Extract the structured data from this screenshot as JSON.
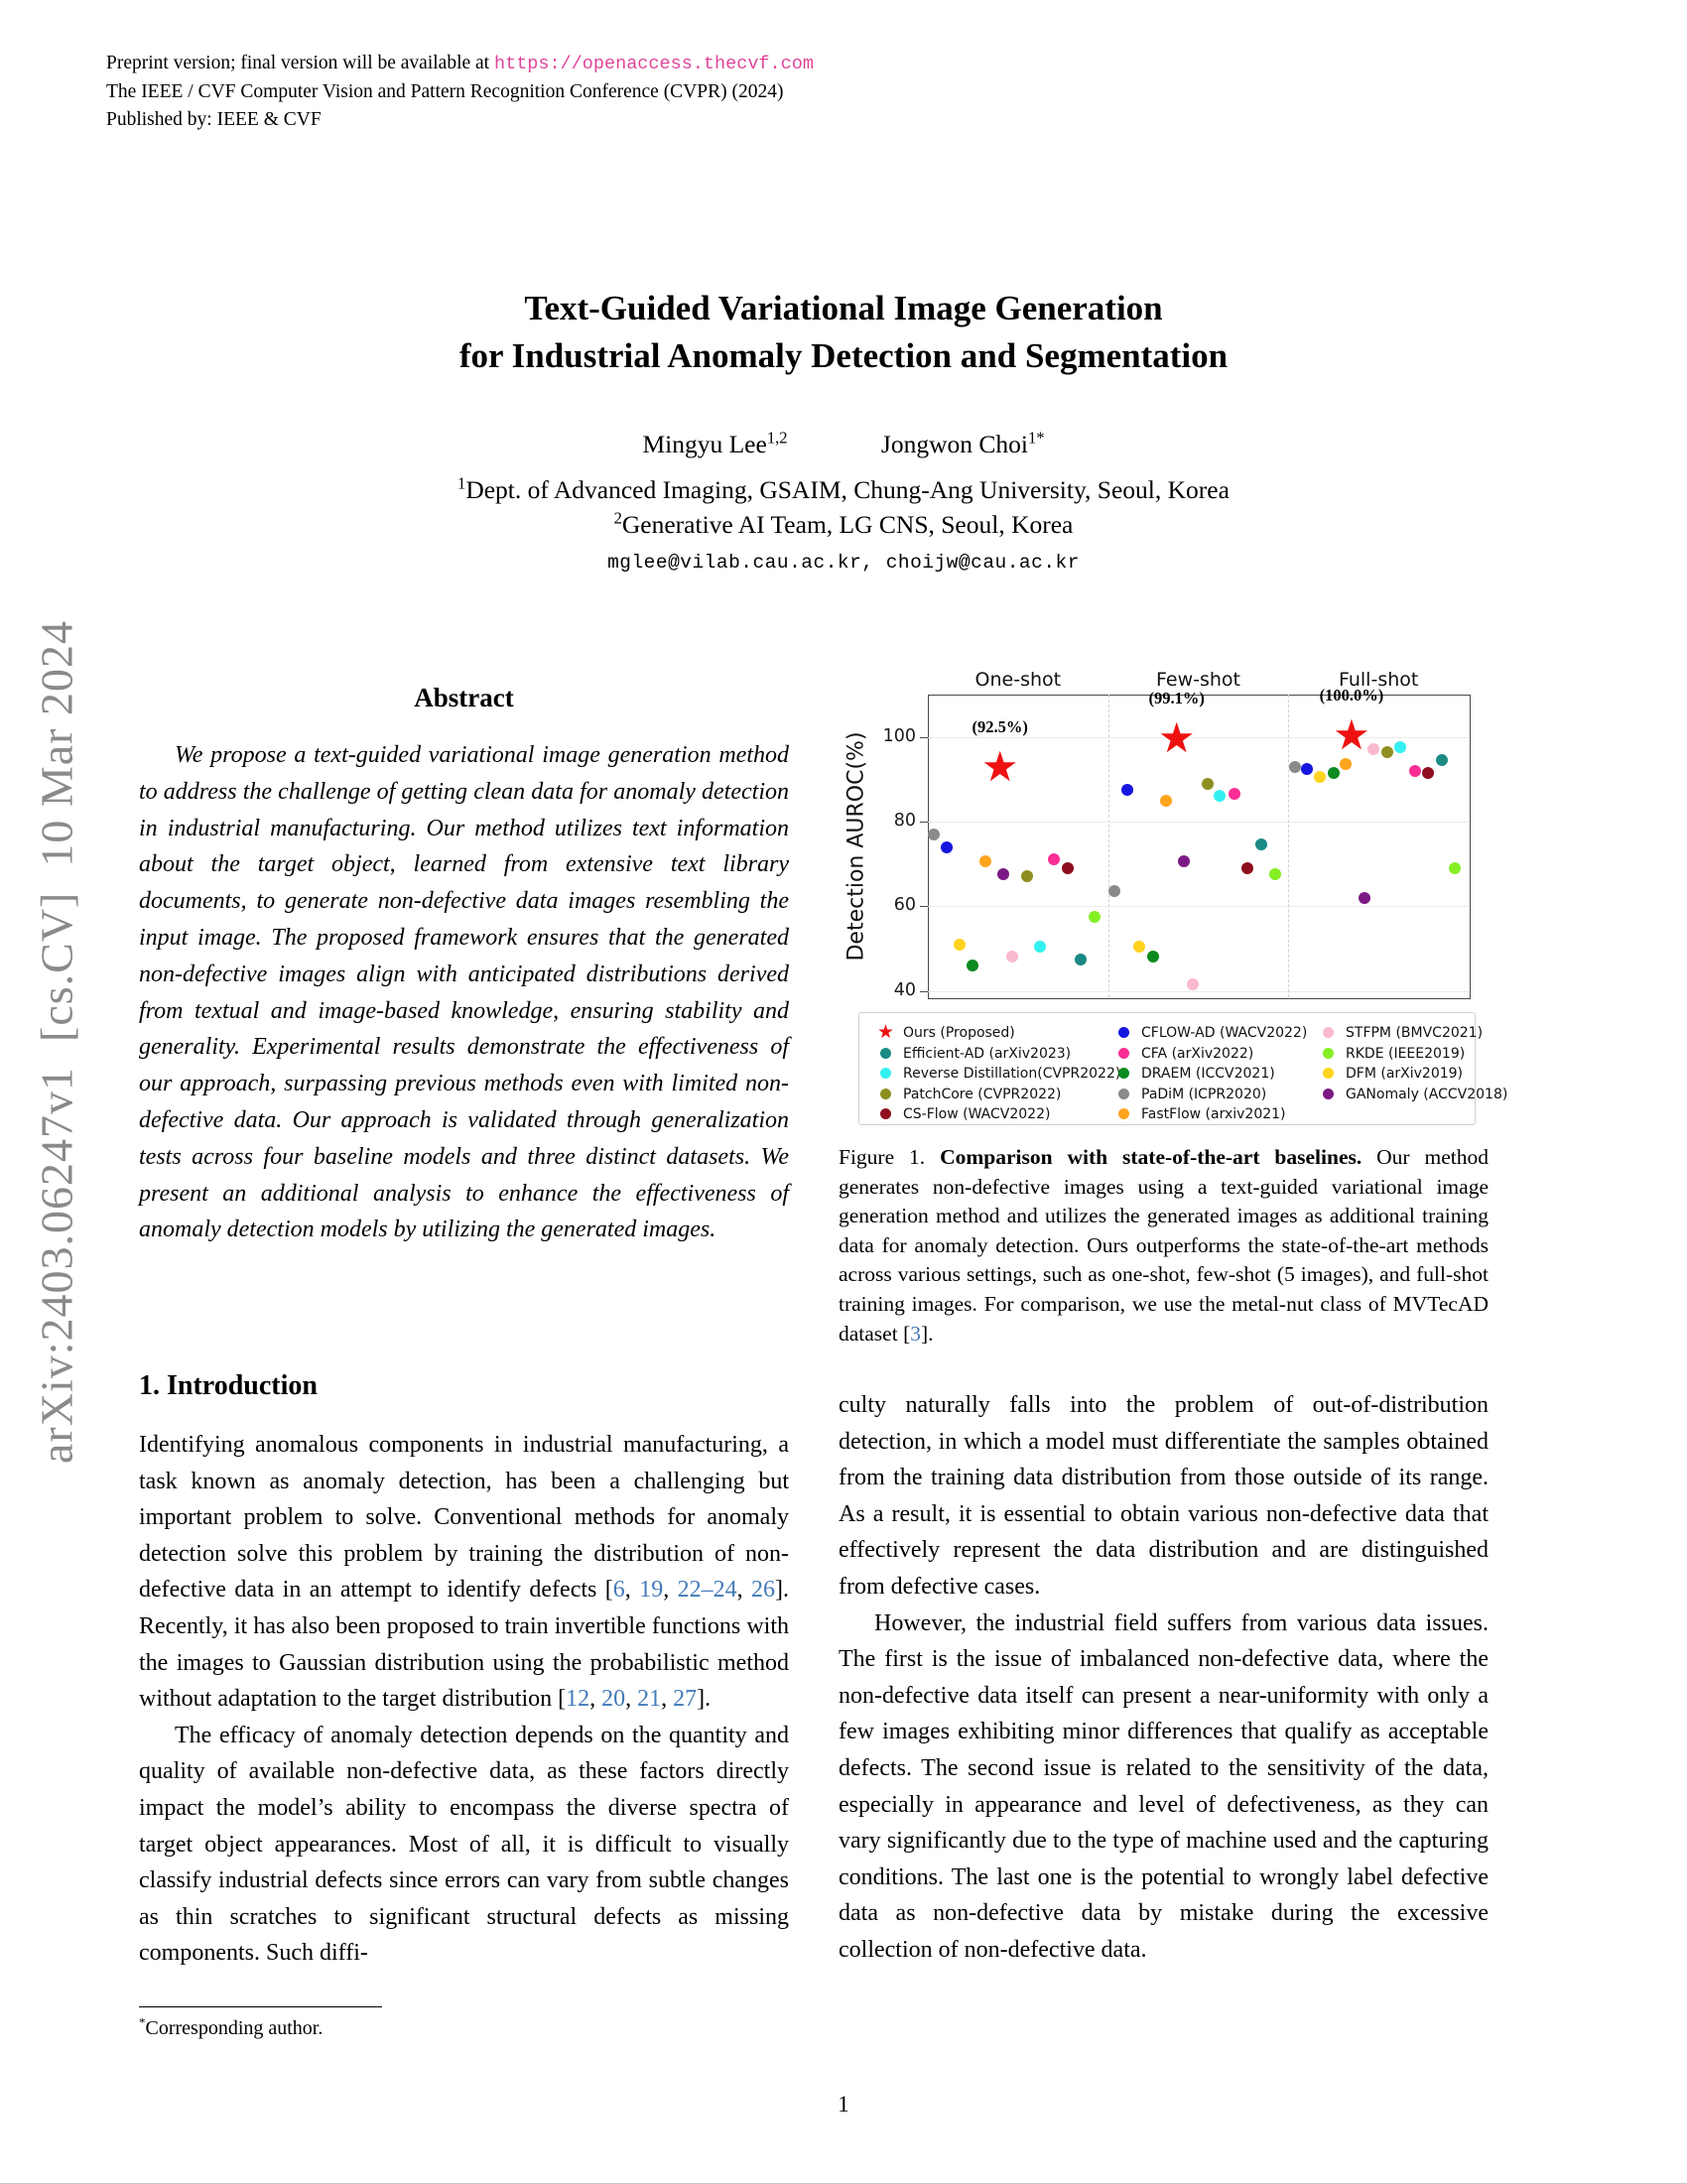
{
  "header": {
    "line1_prefix": "Preprint version; final version will be available at ",
    "line1_url": "https://openaccess.thecvf.com",
    "line2": "The IEEE / CVF Computer Vision and Pattern Recognition Conference (CVPR) (2024)",
    "line3": "Published by: IEEE & CVF"
  },
  "sidebar": {
    "arxiv_text": "arXiv:2403.06247v1  [cs.CV]  10 Mar 2024"
  },
  "title": {
    "line1": "Text-Guided Variational Image Generation",
    "line2": "for Industrial Anomaly Detection and Segmentation"
  },
  "authors": [
    {
      "name": "Mingyu Lee",
      "sup": "1,2"
    },
    {
      "name": "Jongwon Choi",
      "sup": "1*"
    }
  ],
  "affiliations": [
    {
      "sup": "1",
      "text": "Dept. of Advanced Imaging, GSAIM, Chung-Ang University, Seoul, Korea"
    },
    {
      "sup": "2",
      "text": "Generative AI Team, LG CNS, Seoul, Korea"
    }
  ],
  "emails": "mglee@vilab.cau.ac.kr, choijw@cau.ac.kr",
  "abstract": {
    "heading": "Abstract",
    "text": "We propose a text-guided variational image generation method to address the challenge of getting clean data for anomaly detection in industrial manufacturing. Our method utilizes text information about the target object, learned from extensive text library documents, to generate non-defective data images resembling the input image. The proposed framework ensures that the generated non-defective images align with anticipated distributions derived from textual and image-based knowledge, ensuring stability and generality. Experimental results demonstrate the effectiveness of our approach, surpassing previous methods even with limited non-defective data. Our approach is validated through generalization tests across four baseline models and three distinct datasets. We present an additional analysis to enhance the effectiveness of anomaly detection models by utilizing the generated images."
  },
  "intro": {
    "heading": "1. Introduction",
    "p1": "Identifying anomalous components in industrial manufacturing, a task known as anomaly detection, has been a challenging but important problem to solve. Conventional methods for anomaly detection solve this problem by training the distribution of non-defective data in an attempt to identify defects [6, 19, 22–24, 26]. Recently, it has also been proposed to train invertible functions with the images to Gaussian distribution using the probabilistic method without adaptation to the target distribution [12, 20, 21, 27].",
    "p2": "The efficacy of anomaly detection depends on the quantity and quality of available non-defective data, as these factors directly impact the model’s ability to encompass the diverse spectra of target object appearances. Most of all, it is difficult to visually classify industrial defects since errors can vary from subtle changes as thin scratches to significant structural defects as missing components. Such diffi-"
  },
  "footnote": {
    "marker": "*",
    "text": "Corresponding author."
  },
  "figure_caption": {
    "prefix": "Figure 1. ",
    "bold": "Comparison with state-of-the-art baselines.",
    "rest": " Our method generates non-defective images using a text-guided variational image generation method and utilizes the generated images as additional training data for anomaly detection. Ours outperforms the state-of-the-art methods across various settings, such as one-shot, few-shot (5 images), and full-shot training images. For comparison, we use the metal-nut class of MVTecAD dataset [3]."
  },
  "right_column": {
    "p1": "culty naturally falls into the problem of out-of-distribution detection, in which a model must differentiate the samples obtained from the training data distribution from those outside of its range. As a result, it is essential to obtain various non-defective data that effectively represent the data distribution and are distinguished from defective cases.",
    "p2": "However, the industrial field suffers from various data issues. The first is the issue of imbalanced non-defective data, where the non-defective data itself can present a near-uniformity with only a few images exhibiting minor differences that qualify as acceptable defects. The second issue is related to the sensitivity of the data, especially in appearance and level of defectiveness, as they can vary significantly due to the type of machine used and the capturing conditions. The last one is the potential to wrongly label defective data as non-defective data by mistake during the excessive collection of non-defective data."
  },
  "page_number": "1",
  "colors": {
    "link_pink": "#e0459a",
    "cite_blue": "#437ab8",
    "star_red": "#ee1111"
  },
  "chart_data": {
    "type": "scatter",
    "ylabel": "Detection AUROC(%)",
    "yticks": [
      100,
      80,
      60,
      40
    ],
    "ylim": [
      38.5,
      110
    ],
    "panels": [
      "One-shot",
      "Few-shot",
      "Full-shot"
    ],
    "ours": {
      "label": "Ours (Proposed)",
      "color": "#ee1111",
      "values": [
        92.5,
        99.1,
        100.0
      ],
      "labels": [
        "(92.5%)",
        "(99.1%)",
        "(100.0%)"
      ],
      "x": [
        0.4,
        0.38,
        0.35
      ]
    },
    "methods": [
      {
        "name": "PaDiM (ICPR2020)",
        "color": "#8a8a8a",
        "x": 0.035,
        "values": [
          77,
          63.5,
          93
        ]
      },
      {
        "name": "CFLOW-AD (WACV2022)",
        "color": "#1616e0",
        "x": 0.105,
        "values": [
          74,
          87.5,
          92.5
        ]
      },
      {
        "name": "DFM (arXiv2019)",
        "color": "#ffd320",
        "x": 0.175,
        "values": [
          51,
          50.5,
          90.5
        ]
      },
      {
        "name": "DRAEM (ICCV2021)",
        "color": "#0b8a1f",
        "x": 0.25,
        "values": [
          46,
          48,
          91.5
        ]
      },
      {
        "name": "FastFlow (arxiv2021)",
        "color": "#ffa41f",
        "x": 0.32,
        "values": [
          70.5,
          85,
          93.5
        ]
      },
      {
        "name": "GANomaly (ACCV2018)",
        "color": "#7c1a85",
        "x": 0.42,
        "values": [
          67.5,
          70.5,
          62
        ]
      },
      {
        "name": "STFPM (BMVC2021)",
        "color": "#f9b9cc",
        "x": 0.47,
        "values": [
          48,
          41.5,
          97
        ]
      },
      {
        "name": "PatchCore (CVPR2022)",
        "color": "#8e8e20",
        "x": 0.55,
        "values": [
          67,
          89,
          96.5
        ]
      },
      {
        "name": "Reverse Distillation(CVPR2022)",
        "color": "#35f0f0",
        "x": 0.62,
        "values": [
          50.5,
          86,
          97.5
        ]
      },
      {
        "name": "CFA (arXiv2022)",
        "color": "#fb2e96",
        "x": 0.7,
        "values": [
          71,
          86.5,
          92
        ]
      },
      {
        "name": "CS-Flow (WACV2022)",
        "color": "#8e0e1e",
        "x": 0.775,
        "values": [
          69,
          69,
          91.5
        ]
      },
      {
        "name": "Efficient-AD (arXiv2023)",
        "color": "#1a8a85",
        "x": 0.85,
        "values": [
          47.5,
          74.5,
          94.5
        ]
      },
      {
        "name": "RKDE (IEEE2019)",
        "color": "#86ef24",
        "x": 0.925,
        "values": [
          57.5,
          67.5,
          69
        ]
      }
    ],
    "legend": {
      "columns": [
        [
          {
            "label": "Ours (Proposed)",
            "color": "#ee1111",
            "marker": "star"
          },
          {
            "label": "Efficient-AD (arXiv2023)",
            "color": "#1a8a85",
            "marker": "dot"
          },
          {
            "label": "Reverse Distillation(CVPR2022)",
            "color": "#35f0f0",
            "marker": "dot"
          },
          {
            "label": "PatchCore (CVPR2022)",
            "color": "#8e8e20",
            "marker": "dot"
          },
          {
            "label": "CS-Flow (WACV2022)",
            "color": "#8e0e1e",
            "marker": "dot"
          }
        ],
        [
          {
            "label": "CFLOW-AD (WACV2022)",
            "color": "#1616e0",
            "marker": "dot"
          },
          {
            "label": "CFA (arXiv2022)",
            "color": "#fb2e96",
            "marker": "dot"
          },
          {
            "label": "DRAEM (ICCV2021)",
            "color": "#0b8a1f",
            "marker": "dot"
          },
          {
            "label": "PaDiM (ICPR2020)",
            "color": "#8a8a8a",
            "marker": "dot"
          },
          {
            "label": "FastFlow (arxiv2021)",
            "color": "#ffa41f",
            "marker": "dot"
          }
        ],
        [
          {
            "label": "STFPM (BMVC2021)",
            "color": "#f9b9cc",
            "marker": "dot"
          },
          {
            "label": "RKDE (IEEE2019)",
            "color": "#86ef24",
            "marker": "dot"
          },
          {
            "label": "DFM (arXiv2019)",
            "color": "#ffd320",
            "marker": "dot"
          },
          {
            "label": "GANomaly (ACCV2018)",
            "color": "#7c1a85",
            "marker": "dot"
          }
        ]
      ]
    }
  }
}
